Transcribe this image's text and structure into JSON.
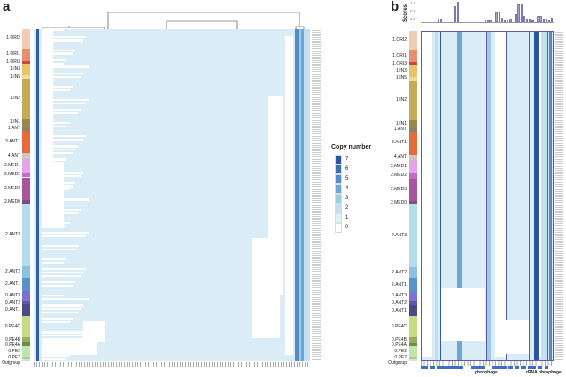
{
  "panels": {
    "a": "a",
    "b": "b"
  },
  "groups": [
    {
      "label": "1.ORI2",
      "color": "#f2cdb5"
    },
    {
      "label": "1.ORI1",
      "color": "#e58f72"
    },
    {
      "label": "1.ORI3",
      "color": "#c9473c"
    },
    {
      "label": "1.IN3",
      "color": "#e7c46a"
    },
    {
      "label": "1.IN5",
      "color": "#ecdca0"
    },
    {
      "label": "1.IN2",
      "color": "#c4ab55"
    },
    {
      "label": "1.IN1",
      "color": "#9c8650"
    },
    {
      "label": "1.ANT",
      "color": "#8a8070"
    },
    {
      "label": "3.ANT1",
      "color": "#e36c3a"
    },
    {
      "label": "4.ANT",
      "color": "#cfc7be"
    },
    {
      "label": "2.MED1",
      "color": "#e3a3e4"
    },
    {
      "label": "2.MED2",
      "color": "#c46ac9"
    },
    {
      "label": "2.MED3",
      "color": "#a8549f"
    },
    {
      "label": "2.MED0",
      "color": "#7d4f80"
    },
    {
      "label": "2.ANT3",
      "color": "#b4dcec"
    },
    {
      "label": "2.ANT2",
      "color": "#8ec0e0"
    },
    {
      "label": "2.ANT1",
      "color": "#5b91c9"
    },
    {
      "label": "0.ANT3",
      "color": "#7b73d3"
    },
    {
      "label": "0.ANT2",
      "color": "#5a5aa8"
    },
    {
      "label": "0.ANT1",
      "color": "#4a4a88"
    },
    {
      "label": "0.PE4C",
      "color": "#c5dd82"
    },
    {
      "label": "0.PE4B",
      "color": "#98ad62"
    },
    {
      "label": "0.PE4A",
      "color": "#6f8a4c"
    },
    {
      "label": "0.PE2",
      "color": "#bfe8a8"
    },
    {
      "label": "0.PE7",
      "color": "#9ed48e"
    },
    {
      "label": "Outgroup",
      "color": "#dddddd"
    }
  ],
  "legend": {
    "title": "Copy number",
    "levels": [
      {
        "value": "7",
        "color": "#2a55a0"
      },
      {
        "value": "6",
        "color": "#3a6fb8"
      },
      {
        "value": "5",
        "color": "#4f8cc8"
      },
      {
        "value": "4",
        "color": "#6aa8d6"
      },
      {
        "value": "3",
        "color": "#9ccbe3"
      },
      {
        "value": "2",
        "color": "#c4dff0"
      },
      {
        "value": "1",
        "color": "#e1eff8"
      },
      {
        "value": "0",
        "color": "#ffffff"
      }
    ]
  },
  "chart_data": {
    "type": "heatmap",
    "title": "",
    "scores": {
      "ylabel": "Scores",
      "yticks": [
        "1.0",
        "0.6",
        "0.2"
      ],
      "ylim": [
        0,
        1.1
      ],
      "values": [
        0,
        0,
        0,
        0,
        0,
        0,
        0.12,
        0.12,
        0,
        0,
        0,
        0,
        0.82,
        1.05,
        0,
        0,
        0,
        0,
        0,
        0,
        0,
        0,
        0,
        0.1,
        0.1,
        0.1,
        0,
        0.5,
        0.5,
        0.25,
        0.1,
        0.1,
        0.2,
        0,
        0.4,
        0.92,
        0.92,
        0.3,
        0.15,
        0.18,
        0.08,
        0,
        0.3,
        0.3,
        0.12,
        0.12,
        0.05,
        0.25
      ]
    },
    "annotations": [
      "phrophage",
      "rRNA phrophage"
    ]
  }
}
